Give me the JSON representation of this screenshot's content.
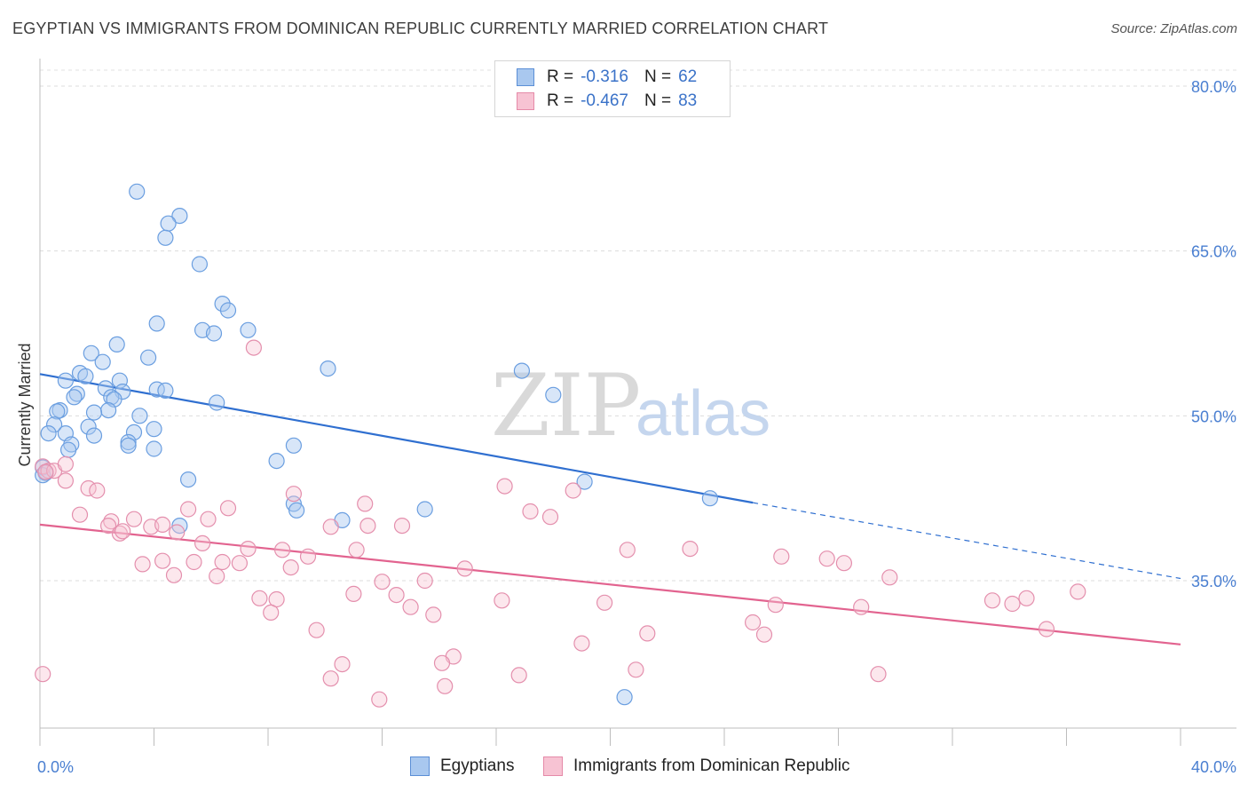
{
  "title": "EGYPTIAN VS IMMIGRANTS FROM DOMINICAN REPUBLIC CURRENTLY MARRIED CORRELATION CHART",
  "source": "Source: ZipAtlas.com",
  "watermark": {
    "zip": "ZIP",
    "atlas": "atlas"
  },
  "legend": {
    "rows": [
      {
        "r_label": "R =",
        "r_value": "-0.316",
        "n_label": "N =",
        "n_value": "62",
        "color": "#a9c8ef",
        "border": "#5b8fd6"
      },
      {
        "r_label": "R =",
        "r_value": "-0.467",
        "n_label": "N =",
        "n_value": "83",
        "color": "#f7c3d3",
        "border": "#e58aa8"
      }
    ]
  },
  "bottom_legend": [
    {
      "label": "Egyptians",
      "color": "#a9c8ef",
      "border": "#5b8fd6"
    },
    {
      "label": "Immigrants from Dominican Republic",
      "color": "#f7c3d3",
      "border": "#e58aa8"
    }
  ],
  "chart_data": {
    "type": "scatter",
    "ylabel": "Currently Married",
    "xlabel": "",
    "xlim": [
      0,
      40
    ],
    "ylim": [
      20.5,
      82.5
    ],
    "x_tick_labels": [
      {
        "x": 0,
        "label": "0.0%"
      },
      {
        "x": 40,
        "label": "40.0%"
      }
    ],
    "x_minor_ticks": [
      0,
      4,
      8,
      12,
      16,
      20,
      24,
      28,
      32,
      36,
      40
    ],
    "y_ticks": [
      {
        "y": 80,
        "label": "80.0%"
      },
      {
        "y": 65,
        "label": "65.0%"
      },
      {
        "y": 50,
        "label": "50.0%"
      },
      {
        "y": 35,
        "label": "35.0%"
      }
    ],
    "grid": true,
    "series": [
      {
        "name": "Egyptians",
        "color": "#6a9ee0",
        "fill": "rgba(169,200,239,0.45)",
        "trend": {
          "x0": 0,
          "y0": 53.8,
          "x1": 25,
          "y1": 42.1,
          "dash_to_x": 40,
          "dash_to_y": 35.2,
          "color": "#2f6fd0"
        },
        "points": [
          [
            3.4,
            70.4
          ],
          [
            4.9,
            68.2
          ],
          [
            4.5,
            67.5
          ],
          [
            4.4,
            66.2
          ],
          [
            5.6,
            63.8
          ],
          [
            6.4,
            60.2
          ],
          [
            6.6,
            59.6
          ],
          [
            4.1,
            58.4
          ],
          [
            5.7,
            57.8
          ],
          [
            6.1,
            57.5
          ],
          [
            7.3,
            57.8
          ],
          [
            2.7,
            56.5
          ],
          [
            1.8,
            55.7
          ],
          [
            3.8,
            55.3
          ],
          [
            2.2,
            54.9
          ],
          [
            10.1,
            54.3
          ],
          [
            1.4,
            53.9
          ],
          [
            1.6,
            53.6
          ],
          [
            0.9,
            53.2
          ],
          [
            2.8,
            53.2
          ],
          [
            2.3,
            52.5
          ],
          [
            2.9,
            52.2
          ],
          [
            4.1,
            52.4
          ],
          [
            4.4,
            52.3
          ],
          [
            1.3,
            52.0
          ],
          [
            1.2,
            51.7
          ],
          [
            2.5,
            51.7
          ],
          [
            2.6,
            51.5
          ],
          [
            6.2,
            51.2
          ],
          [
            0.7,
            50.5
          ],
          [
            0.6,
            50.4
          ],
          [
            2.4,
            50.5
          ],
          [
            1.9,
            50.3
          ],
          [
            3.5,
            50.0
          ],
          [
            0.5,
            49.2
          ],
          [
            1.7,
            49.0
          ],
          [
            4.0,
            48.8
          ],
          [
            3.3,
            48.5
          ],
          [
            0.3,
            48.4
          ],
          [
            0.9,
            48.4
          ],
          [
            1.9,
            48.2
          ],
          [
            3.1,
            47.6
          ],
          [
            3.1,
            47.3
          ],
          [
            8.9,
            47.3
          ],
          [
            1.1,
            47.4
          ],
          [
            4.0,
            47.0
          ],
          [
            1.0,
            46.9
          ],
          [
            8.3,
            45.9
          ],
          [
            16.9,
            54.1
          ],
          [
            18.0,
            51.9
          ],
          [
            0.1,
            45.3
          ],
          [
            0.2,
            44.8
          ],
          [
            0.1,
            44.6
          ],
          [
            5.2,
            44.2
          ],
          [
            19.1,
            44.0
          ],
          [
            23.5,
            42.5
          ],
          [
            8.9,
            42.0
          ],
          [
            9.0,
            41.4
          ],
          [
            13.5,
            41.5
          ],
          [
            10.6,
            40.5
          ],
          [
            4.9,
            40.0
          ],
          [
            20.5,
            24.4
          ]
        ]
      },
      {
        "name": "Immigrants from Dominican Republic",
        "color": "#e48fad",
        "fill": "rgba(247,195,211,0.40)",
        "trend": {
          "x0": 0,
          "y0": 40.1,
          "x1": 40,
          "y1": 29.2,
          "color": "#e2638f"
        },
        "points": [
          [
            7.5,
            56.2
          ],
          [
            0.1,
            45.4
          ],
          [
            0.3,
            45.0
          ],
          [
            0.5,
            45.0
          ],
          [
            0.9,
            45.6
          ],
          [
            0.9,
            44.1
          ],
          [
            0.2,
            44.9
          ],
          [
            1.7,
            43.4
          ],
          [
            2.0,
            43.2
          ],
          [
            16.3,
            43.6
          ],
          [
            18.7,
            43.2
          ],
          [
            8.9,
            42.9
          ],
          [
            11.4,
            42.0
          ],
          [
            6.6,
            41.6
          ],
          [
            5.2,
            41.5
          ],
          [
            1.4,
            41.0
          ],
          [
            17.2,
            41.3
          ],
          [
            17.9,
            40.8
          ],
          [
            5.9,
            40.6
          ],
          [
            3.3,
            40.6
          ],
          [
            2.5,
            40.4
          ],
          [
            2.4,
            40.0
          ],
          [
            3.9,
            39.9
          ],
          [
            4.3,
            40.1
          ],
          [
            10.2,
            39.9
          ],
          [
            11.5,
            40.0
          ],
          [
            12.7,
            40.0
          ],
          [
            4.8,
            39.4
          ],
          [
            2.8,
            39.3
          ],
          [
            2.9,
            39.5
          ],
          [
            5.7,
            38.4
          ],
          [
            7.3,
            37.9
          ],
          [
            8.5,
            37.8
          ],
          [
            11.1,
            37.8
          ],
          [
            20.6,
            37.8
          ],
          [
            22.8,
            37.9
          ],
          [
            26.0,
            37.2
          ],
          [
            27.6,
            37.0
          ],
          [
            28.2,
            36.6
          ],
          [
            9.4,
            37.2
          ],
          [
            4.3,
            36.8
          ],
          [
            5.4,
            36.7
          ],
          [
            6.4,
            36.7
          ],
          [
            7.0,
            36.6
          ],
          [
            3.6,
            36.5
          ],
          [
            8.8,
            36.2
          ],
          [
            14.9,
            36.1
          ],
          [
            4.7,
            35.5
          ],
          [
            6.2,
            35.4
          ],
          [
            13.5,
            35.0
          ],
          [
            12.0,
            34.9
          ],
          [
            29.8,
            35.3
          ],
          [
            36.4,
            34.0
          ],
          [
            11.0,
            33.8
          ],
          [
            7.7,
            33.4
          ],
          [
            8.3,
            33.3
          ],
          [
            12.5,
            33.7
          ],
          [
            16.2,
            33.2
          ],
          [
            19.8,
            33.0
          ],
          [
            33.4,
            33.2
          ],
          [
            34.1,
            32.9
          ],
          [
            34.6,
            33.4
          ],
          [
            13.0,
            32.6
          ],
          [
            25.8,
            32.8
          ],
          [
            28.8,
            32.6
          ],
          [
            13.8,
            31.9
          ],
          [
            8.1,
            32.1
          ],
          [
            25.0,
            31.2
          ],
          [
            25.4,
            30.1
          ],
          [
            9.7,
            30.5
          ],
          [
            21.3,
            30.2
          ],
          [
            35.3,
            30.6
          ],
          [
            19.0,
            29.3
          ],
          [
            14.5,
            28.1
          ],
          [
            14.1,
            27.5
          ],
          [
            10.6,
            27.4
          ],
          [
            20.9,
            26.9
          ],
          [
            16.8,
            26.4
          ],
          [
            29.4,
            26.5
          ],
          [
            10.2,
            26.1
          ],
          [
            14.2,
            25.4
          ],
          [
            11.9,
            24.2
          ],
          [
            0.1,
            26.5
          ]
        ]
      }
    ]
  }
}
